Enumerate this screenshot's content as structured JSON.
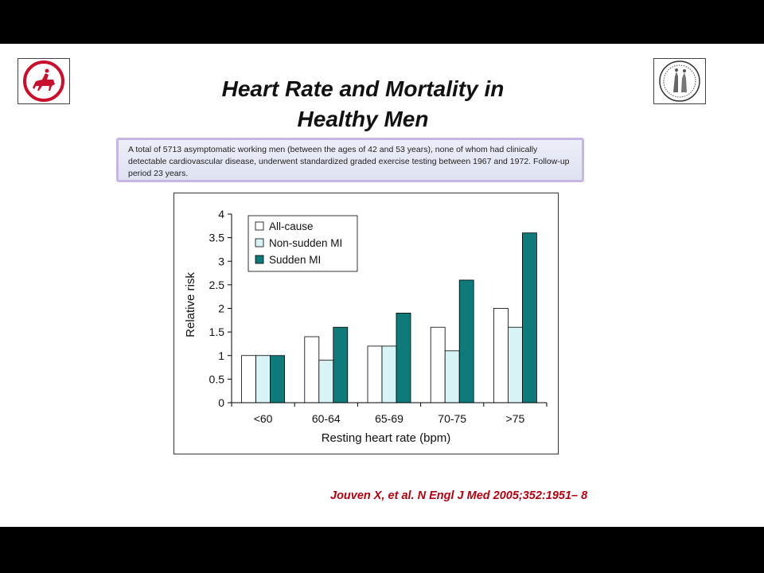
{
  "slide": {
    "title_line1": "Heart Rate and Mortality in",
    "title_line2": "Healthy Men",
    "description": "A total of 5713 asymptomatic working men (between the ages of 42 and 53 years), none of whom had clinically detectable cardiovascular disease, underwent standardized graded exercise testing between 1967 and 1972. Follow-up period 23 years.",
    "citation": "Jouven X, et al. N Engl J Med 2005;352:1951– 8"
  },
  "logos": {
    "left": {
      "icon": "horseman-logo",
      "color": "#c8102e"
    },
    "right": {
      "icon": "seal-logo",
      "color": "#333333"
    }
  },
  "chart_data": {
    "type": "bar",
    "xlabel": "Resting heart rate (bpm)",
    "ylabel": "Relative risk",
    "ylim": [
      0,
      4
    ],
    "yticks": [
      "0",
      "0.5",
      "1",
      "1.5",
      "2",
      "2.5",
      "3",
      "3.5",
      "4"
    ],
    "grid": false,
    "legend": "top-left",
    "categories": [
      "<60",
      "60-64",
      "65-69",
      "70-75",
      ">75"
    ],
    "series": [
      {
        "name": "All-cause",
        "color": "#ffffff",
        "values": [
          1.0,
          1.4,
          1.2,
          1.6,
          2.0
        ]
      },
      {
        "name": "Non-sudden MI",
        "color": "#d8f4f6",
        "values": [
          1.0,
          0.9,
          1.2,
          1.1,
          1.6
        ]
      },
      {
        "name": "Sudden MI",
        "color": "#0e7a7a",
        "values": [
          1.0,
          1.6,
          1.9,
          2.6,
          3.6
        ]
      }
    ]
  }
}
